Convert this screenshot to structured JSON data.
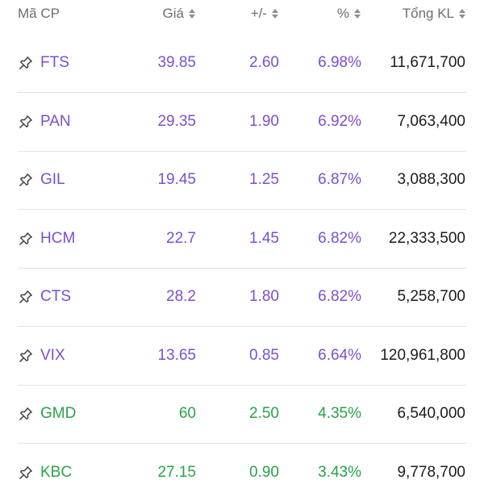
{
  "header": {
    "symbol": "Mã CP",
    "price": "Giá",
    "change": "+/-",
    "percent": "%",
    "volume": "Tổng KL"
  },
  "colors": {
    "ceiling": "#7b50d0",
    "up": "#2aa24a",
    "volume_text": "#1c1c1e"
  },
  "rows": [
    {
      "symbol": "FTS",
      "price": "39.85",
      "change": "2.60",
      "percent": "6.98%",
      "volume": "11,671,700",
      "status": "ceiling"
    },
    {
      "symbol": "PAN",
      "price": "29.35",
      "change": "1.90",
      "percent": "6.92%",
      "volume": "7,063,400",
      "status": "ceiling"
    },
    {
      "symbol": "GIL",
      "price": "19.45",
      "change": "1.25",
      "percent": "6.87%",
      "volume": "3,088,300",
      "status": "ceiling"
    },
    {
      "symbol": "HCM",
      "price": "22.7",
      "change": "1.45",
      "percent": "6.82%",
      "volume": "22,333,500",
      "status": "ceiling"
    },
    {
      "symbol": "CTS",
      "price": "28.2",
      "change": "1.80",
      "percent": "6.82%",
      "volume": "5,258,700",
      "status": "ceiling"
    },
    {
      "symbol": "VIX",
      "price": "13.65",
      "change": "0.85",
      "percent": "6.64%",
      "volume": "120,961,800",
      "status": "ceiling"
    },
    {
      "symbol": "GMD",
      "price": "60",
      "change": "2.50",
      "percent": "4.35%",
      "volume": "6,540,000",
      "status": "up"
    },
    {
      "symbol": "KBC",
      "price": "27.15",
      "change": "0.90",
      "percent": "3.43%",
      "volume": "9,778,700",
      "status": "up"
    }
  ]
}
